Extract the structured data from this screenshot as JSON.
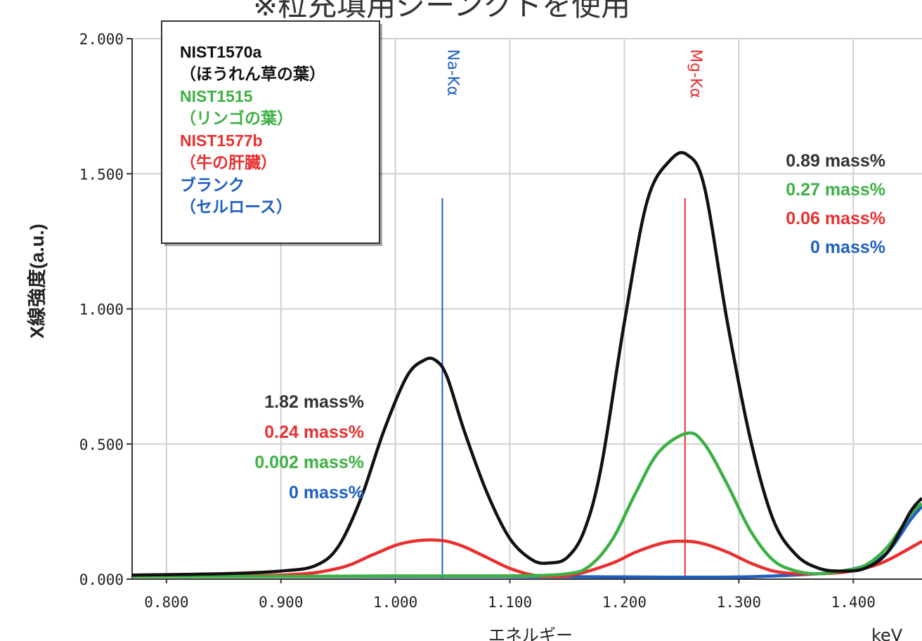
{
  "title": "※粒充填用ジーンクトを使用",
  "chart_data": {
    "type": "line",
    "title": "※粒充填用ジーンクトを使用",
    "xlabel": "エネルギー",
    "x_unit": "keV",
    "ylabel": "X線強度(a.u.)",
    "xlim": [
      0.77,
      1.46
    ],
    "ylim": [
      0,
      2.0
    ],
    "x_ticks": [
      "0.800",
      "0.900",
      "1.000",
      "1.100",
      "1.200",
      "1.300",
      "1.400"
    ],
    "y_ticks": [
      "0.000",
      "0.500",
      "1.000",
      "1.500",
      "2.000"
    ],
    "grid": true,
    "legend_position": "top-left",
    "colors": {
      "black": "#111111",
      "green": "#3cb043",
      "red": "#e83030",
      "blue": "#1f5fbf"
    },
    "series": [
      {
        "name": "NIST1570a",
        "subname": "（ほうれん草の葉）",
        "color": "#111111",
        "x": [
          0.77,
          0.85,
          0.9,
          0.93,
          0.95,
          0.97,
          0.99,
          1.01,
          1.025,
          1.035,
          1.045,
          1.06,
          1.08,
          1.1,
          1.12,
          1.135,
          1.15,
          1.165,
          1.18,
          1.2,
          1.22,
          1.24,
          1.255,
          1.27,
          1.29,
          1.31,
          1.33,
          1.35,
          1.37,
          1.39,
          1.41,
          1.43,
          1.45,
          1.46
        ],
        "y": [
          0.015,
          0.02,
          0.03,
          0.05,
          0.12,
          0.3,
          0.55,
          0.75,
          0.81,
          0.81,
          0.75,
          0.55,
          0.32,
          0.15,
          0.07,
          0.06,
          0.08,
          0.18,
          0.42,
          0.95,
          1.4,
          1.55,
          1.57,
          1.45,
          0.95,
          0.52,
          0.22,
          0.09,
          0.04,
          0.03,
          0.04,
          0.1,
          0.25,
          0.3
        ]
      },
      {
        "name": "NIST1515",
        "subname": "（リンゴの葉）",
        "color": "#3cb043",
        "x": [
          0.77,
          0.9,
          1.0,
          1.1,
          1.15,
          1.17,
          1.19,
          1.21,
          1.23,
          1.255,
          1.27,
          1.29,
          1.31,
          1.33,
          1.35,
          1.37,
          1.39,
          1.41,
          1.43,
          1.45,
          1.46
        ],
        "y": [
          0.01,
          0.01,
          0.012,
          0.012,
          0.02,
          0.05,
          0.15,
          0.32,
          0.47,
          0.54,
          0.5,
          0.35,
          0.18,
          0.07,
          0.03,
          0.02,
          0.03,
          0.05,
          0.12,
          0.24,
          0.28
        ]
      },
      {
        "name": "NIST1577b",
        "subname": "（牛の肝臓）",
        "color": "#e83030",
        "x": [
          0.77,
          0.9,
          0.95,
          0.98,
          1.0,
          1.015,
          1.03,
          1.045,
          1.06,
          1.08,
          1.1,
          1.12,
          1.14,
          1.16,
          1.19,
          1.21,
          1.235,
          1.255,
          1.27,
          1.29,
          1.31,
          1.33,
          1.35,
          1.37,
          1.39,
          1.41,
          1.43,
          1.46
        ],
        "y": [
          0.01,
          0.015,
          0.04,
          0.09,
          0.125,
          0.14,
          0.145,
          0.14,
          0.12,
          0.08,
          0.04,
          0.015,
          0.01,
          0.02,
          0.06,
          0.1,
          0.135,
          0.14,
          0.13,
          0.1,
          0.06,
          0.03,
          0.02,
          0.02,
          0.025,
          0.04,
          0.07,
          0.14
        ]
      },
      {
        "name": "ブランク",
        "subname": "（セルロース）",
        "color": "#1f5fbf",
        "x": [
          0.77,
          0.9,
          1.0,
          1.1,
          1.2,
          1.3,
          1.37,
          1.39,
          1.41,
          1.43,
          1.45,
          1.46
        ],
        "y": [
          0.01,
          0.01,
          0.01,
          0.01,
          0.008,
          0.008,
          0.02,
          0.03,
          0.05,
          0.1,
          0.22,
          0.27
        ]
      }
    ],
    "element_lines": [
      {
        "label": "Na-Kα",
        "x": 1.041,
        "height": 1.41,
        "color": "#1f5fbf"
      },
      {
        "label": "Mg-Kα",
        "x": 1.253,
        "height": 1.41,
        "color": "#e83030"
      }
    ],
    "annotations": [
      {
        "group": "Na",
        "items": [
          {
            "text": "1.82 mass%",
            "color": "#333333"
          },
          {
            "text": "0.24 mass%",
            "color": "#e83030"
          },
          {
            "text": "0.002 mass%",
            "color": "#3cb043"
          },
          {
            "text": "0 mass%",
            "color": "#1f5fbf"
          }
        ]
      },
      {
        "group": "Mg",
        "items": [
          {
            "text": "0.89 mass%",
            "color": "#333333"
          },
          {
            "text": "0.27 mass%",
            "color": "#3cb043"
          },
          {
            "text": "0.06 mass%",
            "color": "#e83030"
          },
          {
            "text": "0 mass%",
            "color": "#1f5fbf"
          }
        ]
      }
    ]
  }
}
